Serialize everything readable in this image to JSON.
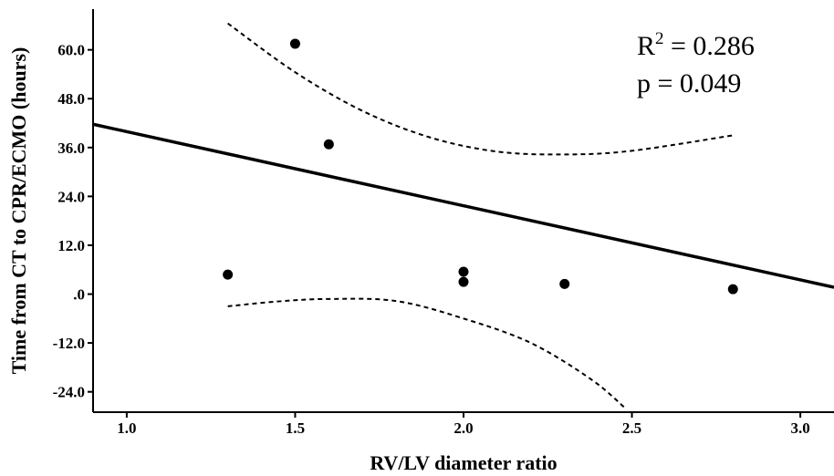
{
  "chart_data": {
    "type": "scatter",
    "title": "",
    "xlabel": "RV/LV diameter ratio",
    "ylabel": "Time from CT to CPR/ECMO (hours)",
    "xlim": [
      0.9,
      3.1
    ],
    "ylim": [
      -29,
      70
    ],
    "x_ticks": [
      1.0,
      1.5,
      2.0,
      2.5,
      3.0
    ],
    "x_tick_labels": [
      "1.0",
      "1.5",
      "2.0",
      "2.5",
      "3.0"
    ],
    "y_ticks": [
      60,
      48,
      36,
      24,
      12,
      0,
      -12,
      -24
    ],
    "y_tick_labels": [
      "60.0",
      "48.0",
      "36.0",
      "24.0",
      "12.0",
      ".0",
      "-12.0",
      "-24.0"
    ],
    "points": [
      {
        "x": 1.3,
        "y": 4.8
      },
      {
        "x": 1.5,
        "y": 61.5
      },
      {
        "x": 1.6,
        "y": 36.8
      },
      {
        "x": 2.0,
        "y": 5.5
      },
      {
        "x": 2.0,
        "y": 3.0
      },
      {
        "x": 2.3,
        "y": 2.5
      },
      {
        "x": 2.8,
        "y": 1.2
      }
    ],
    "regression": {
      "intercept": 58.1,
      "slope": -18.2
    },
    "confidence_band": {
      "upper": [
        [
          1.3,
          66.5
        ],
        [
          1.5,
          54.5
        ],
        [
          1.7,
          45.0
        ],
        [
          1.9,
          38.5
        ],
        [
          2.1,
          35.0
        ],
        [
          2.3,
          34.3
        ],
        [
          2.5,
          35.2
        ],
        [
          2.8,
          39.0
        ]
      ],
      "lower": [
        [
          1.3,
          -3.0
        ],
        [
          1.45,
          -1.8
        ],
        [
          1.6,
          -1.2
        ],
        [
          1.8,
          -1.7
        ],
        [
          2.0,
          -6.0
        ],
        [
          2.2,
          -12.0
        ],
        [
          2.38,
          -21.0
        ],
        [
          2.48,
          -28.0
        ]
      ]
    },
    "annotations": {
      "r2_prefix": "R",
      "r2_exp": "2",
      "r2_value": " = 0.286",
      "p_text": "p = 0.049"
    },
    "grid": false,
    "legend": "none"
  }
}
